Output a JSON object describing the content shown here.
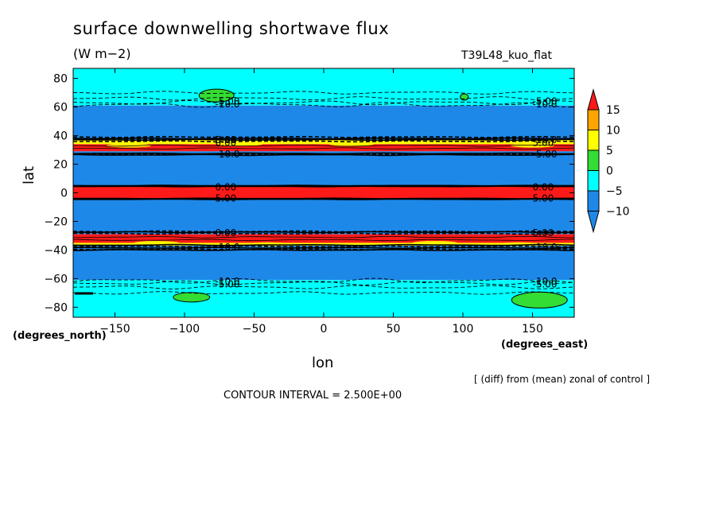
{
  "title": "surface downwelling shortwave flux",
  "units": "(W m−2)",
  "run_name": "T39L48_kuo_flat",
  "xunits": "(degrees_east)",
  "yunits": "(degrees_north)",
  "note": "[ (diff) from (mean) zonal of control ]",
  "contour_interval": "CONTOUR INTERVAL = 2.500E+00",
  "colors": {
    "lt_m10": "#1e88e8",
    "m10_m5": "#1e88e8",
    "m5_0": "#00ffff",
    "0_5": "#33dd33",
    "5_10": "#ffff00",
    "10_15": "#ffa500",
    "gt_15": "#ff1a1a"
  },
  "chart_data": {
    "type": "heatmap",
    "title": "surface downwelling shortwave flux",
    "xlabel": "lon",
    "ylabel": "lat",
    "xlim": [
      -180,
      180
    ],
    "ylim": [
      -87,
      87
    ],
    "xticks": [
      -150,
      -100,
      -50,
      0,
      50,
      100,
      150
    ],
    "yticks": [
      -80,
      -60,
      -40,
      -20,
      0,
      20,
      40,
      60,
      80
    ],
    "colorbar": {
      "levels": [
        -10,
        -5,
        0,
        5,
        10,
        15
      ],
      "labels": [
        "15",
        "10",
        "5",
        "0",
        "−5",
        "−10"
      ]
    },
    "zonal_bands": [
      {
        "lat_from": 61,
        "lat_to": 87,
        "range": "-5..0"
      },
      {
        "lat_from": 37,
        "lat_to": 61,
        "range": "<-10"
      },
      {
        "lat_from": 34,
        "lat_to": 37,
        "range": "0..10"
      },
      {
        "lat_from": 29,
        "lat_to": 34,
        "range": ">15"
      },
      {
        "lat_from": 5,
        "lat_to": 29,
        "range": "<-10"
      },
      {
        "lat_from": -4,
        "lat_to": 5,
        "range": ">15"
      },
      {
        "lat_from": -29,
        "lat_to": -4,
        "range": "<-10"
      },
      {
        "lat_from": -35,
        "lat_to": -29,
        "range": ">15"
      },
      {
        "lat_from": -37,
        "lat_to": -35,
        "range": "0..10"
      },
      {
        "lat_from": -61,
        "lat_to": -37,
        "range": "<-10"
      },
      {
        "lat_from": -87,
        "lat_to": -61,
        "range": "-5..0"
      }
    ],
    "patches": [
      {
        "lon": -77,
        "lat": 68,
        "range": "0..5"
      },
      {
        "lon": 101,
        "lat": 67,
        "range": "0..5"
      },
      {
        "lon": -95,
        "lat": -73,
        "range": "0..5"
      },
      {
        "lon": 155,
        "lat": -75,
        "range": "0..5"
      }
    ],
    "contour_labels": [
      "-5.00",
      "-10.0",
      "-5.00",
      "-10.0",
      "5.00",
      "0.00",
      "-10.0",
      "-5.00",
      "0.00",
      "5.00"
    ]
  }
}
